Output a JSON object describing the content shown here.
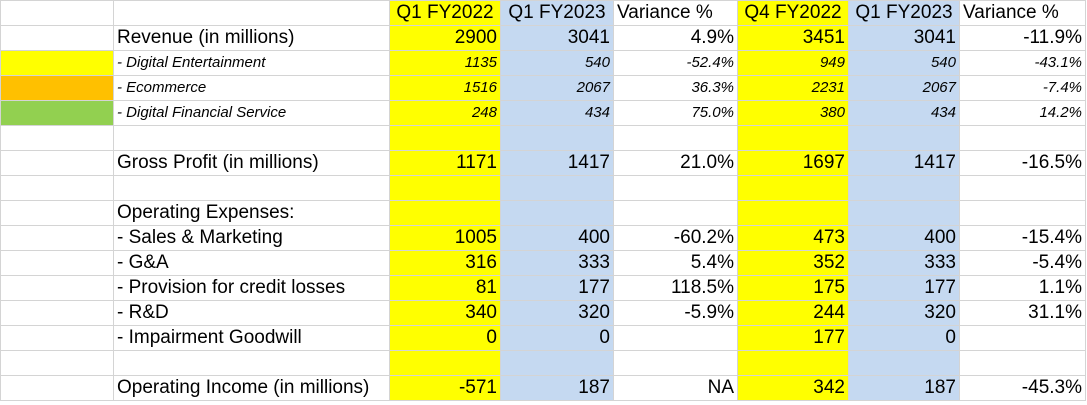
{
  "headers": [
    "Q1 FY2022",
    "Q1 FY2023",
    "Variance %",
    "Q4 FY2022",
    "Q1 FY2023",
    "Variance %"
  ],
  "colors": {
    "yellow": "#ffff00",
    "orange": "#ffc000",
    "green": "#92d050",
    "light_blue": "#c5d9f1"
  },
  "rows": [
    {
      "label": "Revenue (in millions)",
      "values": [
        "2900",
        "3041",
        "4.9%",
        "3451",
        "3041",
        "-11.9%"
      ]
    },
    {
      "label": "- Digital Entertainment",
      "values": [
        "1135",
        "540",
        "-52.4%",
        "949",
        "540",
        "-43.1%"
      ]
    },
    {
      "label": "- Ecommerce",
      "values": [
        "1516",
        "2067",
        "36.3%",
        "2231",
        "2067",
        "-7.4%"
      ]
    },
    {
      "label": "- Digital Financial Service",
      "values": [
        "248",
        "434",
        "75.0%",
        "380",
        "434",
        "14.2%"
      ]
    },
    {
      "label": "",
      "values": [
        "",
        "",
        "",
        "",
        "",
        ""
      ]
    },
    {
      "label": "Gross Profit (in millions)",
      "values": [
        "1171",
        "1417",
        "21.0%",
        "1697",
        "1417",
        "-16.5%"
      ]
    },
    {
      "label": "",
      "values": [
        "",
        "",
        "",
        "",
        "",
        ""
      ]
    },
    {
      "label": "Operating Expenses:",
      "values": [
        "",
        "",
        "",
        "",
        "",
        ""
      ]
    },
    {
      "label": "- Sales & Marketing",
      "values": [
        "1005",
        "400",
        "-60.2%",
        "473",
        "400",
        "-15.4%"
      ]
    },
    {
      "label": "- G&A",
      "values": [
        "316",
        "333",
        "5.4%",
        "352",
        "333",
        "-5.4%"
      ]
    },
    {
      "label": "- Provision for credit losses",
      "values": [
        "81",
        "177",
        "118.5%",
        "175",
        "177",
        "1.1%"
      ]
    },
    {
      "label": "- R&D",
      "values": [
        "340",
        "320",
        "-5.9%",
        "244",
        "320",
        "31.1%"
      ]
    },
    {
      "label": "- Impairment Goodwill",
      "values": [
        "0",
        "0",
        "",
        "177",
        "0",
        ""
      ]
    },
    {
      "label": "",
      "values": [
        "",
        "",
        "",
        "",
        "",
        ""
      ]
    },
    {
      "label": "Operating Income (in millions)",
      "values": [
        "-571",
        "187",
        "NA",
        "342",
        "187",
        "-45.3%"
      ]
    }
  ]
}
